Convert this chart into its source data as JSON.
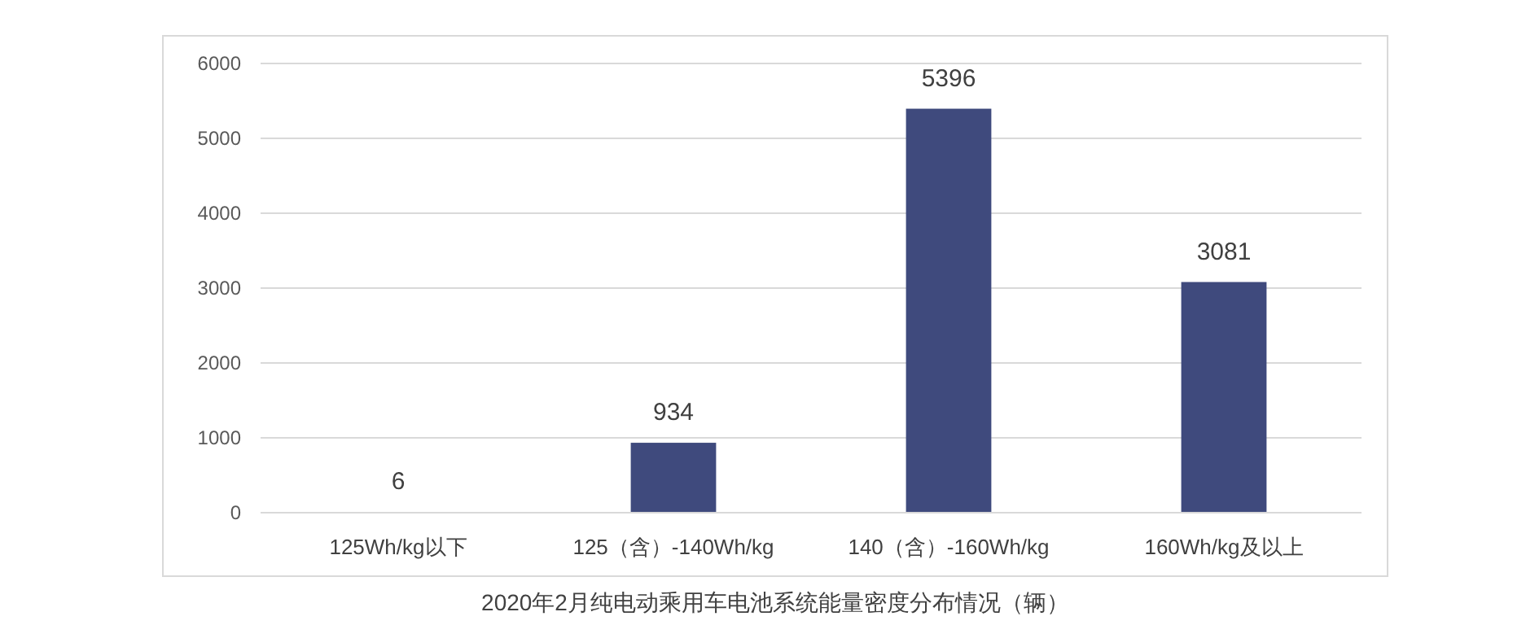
{
  "chart_data": {
    "type": "bar",
    "title": "2020年2月纯电动乘用车电池系统能量密度分布情况（辆）",
    "categories": [
      "125Wh/kg以下",
      "125（含）-140Wh/kg",
      "140（含）-160Wh/kg",
      "160Wh/kg及以上"
    ],
    "values": [
      6,
      934,
      5396,
      3081
    ],
    "color": "#3f4a7d",
    "ylim": [
      0,
      6000
    ],
    "yticks": [
      0,
      1000,
      2000,
      3000,
      4000,
      5000,
      6000
    ],
    "grid": "y",
    "data_labels": true
  }
}
